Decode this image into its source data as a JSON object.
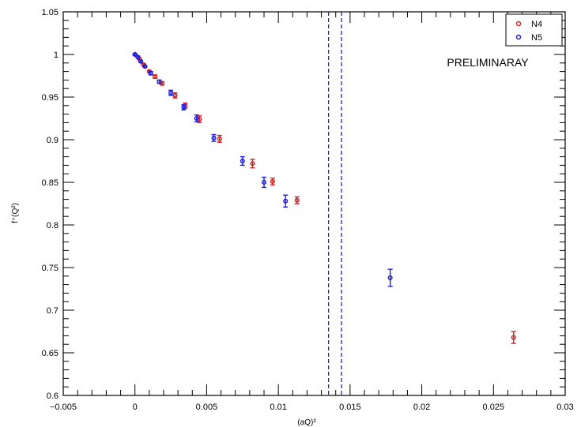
{
  "chart_data": {
    "type": "scatter",
    "title": "",
    "xlabel": "(aQ)²",
    "ylabel": "f⁺(Q²)",
    "xlim": [
      -0.005,
      0.03
    ],
    "ylim": [
      0.6,
      1.05
    ],
    "xticks": [
      -0.005,
      0,
      0.005,
      0.01,
      0.015,
      0.02,
      0.025,
      0.03
    ],
    "xtick_labels": [
      "−0.005",
      "0",
      "0.005",
      "0.01",
      "0.015",
      "0.02",
      "0.025",
      "0.03"
    ],
    "yticks": [
      0.6,
      0.65,
      0.7,
      0.75,
      0.8,
      0.85,
      0.9,
      0.95,
      1,
      1.05
    ],
    "ytick_labels": [
      "0.6",
      "0.65",
      "0.7",
      "0.75",
      "0.8",
      "0.85",
      "0.9",
      "0.95",
      "1",
      "1.05"
    ],
    "grid": false,
    "legend_position": "top-right",
    "annotation": "PRELIMINARAY",
    "vertical_lines": [
      0.0135,
      0.0144
    ],
    "series": [
      {
        "name": "N4",
        "color": "#d42020",
        "points": [
          {
            "x": 0.0,
            "y": 1.0,
            "err": 0.001
          },
          {
            "x": 0.0003,
            "y": 0.995,
            "err": 0.001
          },
          {
            "x": 0.0006,
            "y": 0.988,
            "err": 0.001
          },
          {
            "x": 0.001,
            "y": 0.98,
            "err": 0.001
          },
          {
            "x": 0.0014,
            "y": 0.974,
            "err": 0.002
          },
          {
            "x": 0.0019,
            "y": 0.966,
            "err": 0.002
          },
          {
            "x": 0.0028,
            "y": 0.952,
            "err": 0.003
          },
          {
            "x": 0.0035,
            "y": 0.94,
            "err": 0.003
          },
          {
            "x": 0.0045,
            "y": 0.924,
            "err": 0.004
          },
          {
            "x": 0.0059,
            "y": 0.901,
            "err": 0.004
          },
          {
            "x": 0.0082,
            "y": 0.872,
            "err": 0.005
          },
          {
            "x": 0.0096,
            "y": 0.851,
            "err": 0.004
          },
          {
            "x": 0.0113,
            "y": 0.829,
            "err": 0.004
          },
          {
            "x": 0.0264,
            "y": 0.668,
            "err": 0.007
          }
        ]
      },
      {
        "name": "N5",
        "color": "#2020d4",
        "points": [
          {
            "x": 0.0,
            "y": 1.0,
            "err": 0.001
          },
          {
            "x": 0.0002,
            "y": 0.997,
            "err": 0.001
          },
          {
            "x": 0.0004,
            "y": 0.992,
            "err": 0.001
          },
          {
            "x": 0.0007,
            "y": 0.986,
            "err": 0.001
          },
          {
            "x": 0.0011,
            "y": 0.978,
            "err": 0.002
          },
          {
            "x": 0.0017,
            "y": 0.968,
            "err": 0.002
          },
          {
            "x": 0.0025,
            "y": 0.955,
            "err": 0.003
          },
          {
            "x": 0.0034,
            "y": 0.938,
            "err": 0.003
          },
          {
            "x": 0.0043,
            "y": 0.925,
            "err": 0.004
          },
          {
            "x": 0.0055,
            "y": 0.902,
            "err": 0.004
          },
          {
            "x": 0.0075,
            "y": 0.875,
            "err": 0.005
          },
          {
            "x": 0.009,
            "y": 0.85,
            "err": 0.006
          },
          {
            "x": 0.0105,
            "y": 0.828,
            "err": 0.007
          },
          {
            "x": 0.0178,
            "y": 0.738,
            "err": 0.01
          }
        ]
      }
    ]
  }
}
